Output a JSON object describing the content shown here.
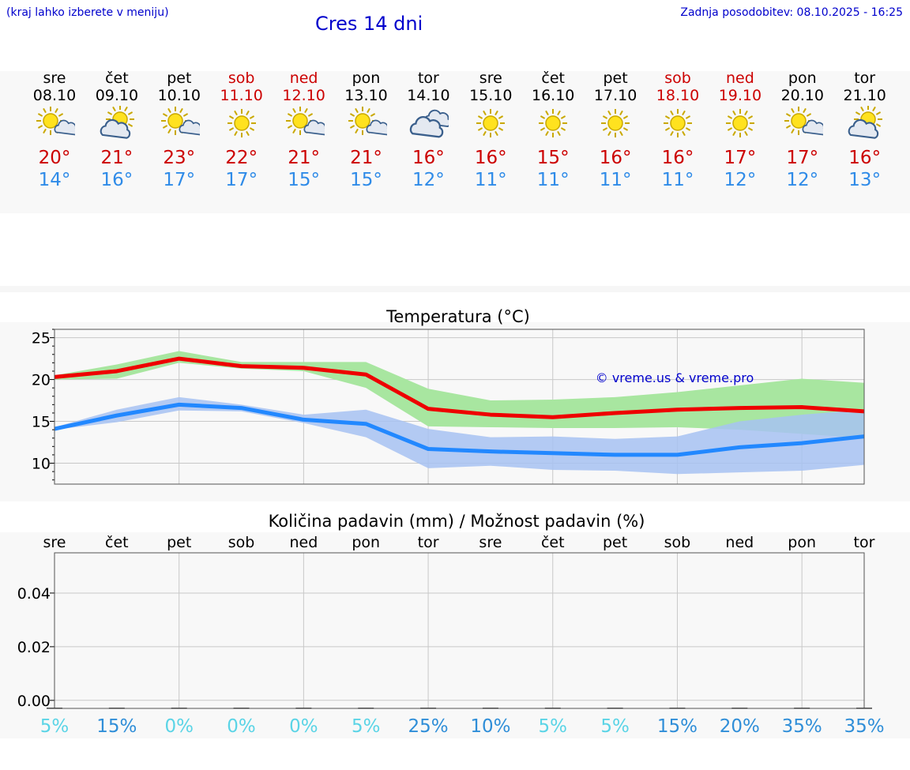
{
  "header": {
    "menu_hint": "(kraj lahko izberete v meniju)",
    "title": "Cres 14 dni",
    "updated": "Zadnja posodobitev: 08.10.2025 - 16:25"
  },
  "colors": {
    "max": "#cc0000",
    "min": "#2f8be8",
    "link": "#0000cc",
    "red_line": "#ee0000",
    "blue_line": "#2288ff"
  },
  "days": [
    {
      "name": "sre",
      "date": "08.10",
      "weekend": false,
      "icon": "sun-cloud-icon",
      "max": "20°",
      "min": "14°"
    },
    {
      "name": "čet",
      "date": "09.10",
      "weekend": false,
      "icon": "cloud-sun-icon",
      "max": "21°",
      "min": "16°"
    },
    {
      "name": "pet",
      "date": "10.10",
      "weekend": false,
      "icon": "sun-cloud-icon",
      "max": "23°",
      "min": "17°"
    },
    {
      "name": "sob",
      "date": "11.10",
      "weekend": true,
      "icon": "sun-icon",
      "max": "22°",
      "min": "17°"
    },
    {
      "name": "ned",
      "date": "12.10",
      "weekend": true,
      "icon": "sun-cloud-icon",
      "max": "21°",
      "min": "15°"
    },
    {
      "name": "pon",
      "date": "13.10",
      "weekend": false,
      "icon": "sun-cloud-icon",
      "max": "21°",
      "min": "15°"
    },
    {
      "name": "tor",
      "date": "14.10",
      "weekend": false,
      "icon": "cloudy-icon",
      "max": "16°",
      "min": "12°"
    },
    {
      "name": "sre",
      "date": "15.10",
      "weekend": false,
      "icon": "sun-icon",
      "max": "16°",
      "min": "11°"
    },
    {
      "name": "čet",
      "date": "16.10",
      "weekend": false,
      "icon": "sun-icon",
      "max": "15°",
      "min": "11°"
    },
    {
      "name": "pet",
      "date": "17.10",
      "weekend": false,
      "icon": "sun-icon",
      "max": "16°",
      "min": "11°"
    },
    {
      "name": "sob",
      "date": "18.10",
      "weekend": true,
      "icon": "sun-icon",
      "max": "16°",
      "min": "11°"
    },
    {
      "name": "ned",
      "date": "19.10",
      "weekend": true,
      "icon": "sun-icon",
      "max": "17°",
      "min": "12°"
    },
    {
      "name": "pon",
      "date": "20.10",
      "weekend": false,
      "icon": "sun-cloud-icon",
      "max": "17°",
      "min": "12°"
    },
    {
      "name": "tor",
      "date": "21.10",
      "weekend": false,
      "icon": "cloud-sun-icon",
      "max": "16°",
      "min": "13°"
    }
  ],
  "chart_data": [
    {
      "type": "line",
      "title": "Temperatura (°C)",
      "watermark": "© vreme.us & vreme.pro",
      "ylim": [
        7.5,
        26
      ],
      "yticks": [
        10,
        15,
        20,
        25
      ],
      "x": [
        "08.10",
        "09.10",
        "10.10",
        "11.10",
        "12.10",
        "13.10",
        "14.10",
        "15.10",
        "16.10",
        "17.10",
        "18.10",
        "19.10",
        "20.10",
        "21.10"
      ],
      "series": [
        {
          "color": "#ee0000",
          "values": [
            20.3,
            21.0,
            22.5,
            21.6,
            21.4,
            20.6,
            16.5,
            15.8,
            15.5,
            16.0,
            16.4,
            16.6,
            16.7,
            16.2
          ],
          "band_low": [
            20.0,
            20.1,
            22.0,
            21.3,
            21.0,
            19.0,
            14.4,
            14.3,
            14.2,
            14.2,
            14.3,
            14.0,
            13.5,
            13.0
          ],
          "band_high": [
            20.5,
            21.8,
            23.4,
            22.1,
            22.1,
            22.1,
            18.9,
            17.5,
            17.6,
            17.9,
            18.5,
            19.3,
            20.1,
            19.6
          ]
        },
        {
          "color": "#2288ff",
          "values": [
            14.1,
            15.7,
            17.0,
            16.6,
            15.2,
            14.7,
            11.7,
            11.4,
            11.2,
            11.0,
            11.0,
            11.9,
            12.4,
            13.2
          ],
          "band_low": [
            14.0,
            14.9,
            16.3,
            16.2,
            14.8,
            13.1,
            9.4,
            9.7,
            9.2,
            9.1,
            8.7,
            8.9,
            9.1,
            9.8
          ],
          "band_high": [
            14.3,
            16.4,
            17.9,
            17.0,
            15.8,
            16.4,
            14.1,
            13.1,
            13.2,
            12.9,
            13.2,
            15.0,
            15.8,
            16.4
          ],
          "overlap_color": "#67a9a9"
        }
      ]
    },
    {
      "type": "bar",
      "title": "Količina padavin (mm) / Možnost padavin (%)",
      "categories": [
        "sre",
        "čet",
        "pet",
        "sob",
        "ned",
        "pon",
        "tor",
        "sre",
        "čet",
        "pet",
        "sob",
        "ned",
        "pon",
        "tor"
      ],
      "values": [
        0,
        0,
        0,
        0,
        0,
        0,
        0,
        0,
        0,
        0,
        0,
        0,
        0,
        0
      ],
      "ylim": [
        -0.003,
        0.055
      ],
      "yticks": [
        "0.00",
        "0.02",
        "0.04"
      ],
      "chance": [
        "5%",
        "15%",
        "0%",
        "0%",
        "0%",
        "5%",
        "25%",
        "10%",
        "5%",
        "5%",
        "15%",
        "20%",
        "35%",
        "35%"
      ],
      "chance_values": [
        5,
        15,
        0,
        0,
        0,
        5,
        25,
        10,
        5,
        5,
        15,
        20,
        35,
        35
      ]
    }
  ]
}
